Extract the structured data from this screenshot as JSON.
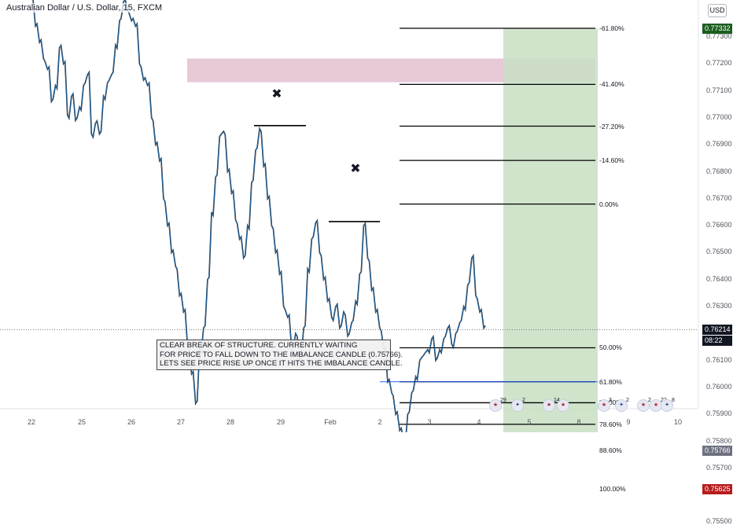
{
  "header": {
    "title": "Australian Dollar / U.S. Dollar, 15, FXCM",
    "currency": "USD"
  },
  "chart_data": {
    "type": "candlestick",
    "symbol": "AUDUSD",
    "timeframe": "15",
    "ylim": [
      0.7545,
      0.7742
    ],
    "y_ticks": [
      "0.77300",
      "0.77200",
      "0.77100",
      "0.77000",
      "0.76900",
      "0.76800",
      "0.76700",
      "0.76600",
      "0.76500",
      "0.76400",
      "0.76300",
      "0.76200",
      "0.76100",
      "0.76000",
      "0.75900",
      "0.75800",
      "0.75700",
      "0.75500"
    ],
    "x_ticks": [
      "22",
      "25",
      "26",
      "27",
      "28",
      "29",
      "Feb",
      "2",
      "3",
      "4",
      "5",
      "8",
      "9",
      "10"
    ],
    "price_path": [
      [
        0.7745,
        0.7734
      ],
      [
        0.7728,
        0.7722
      ],
      [
        0.7718,
        0.7706
      ],
      [
        0.7712,
        0.7726
      ],
      [
        0.772,
        0.7701
      ],
      [
        0.7708,
        0.7699
      ],
      [
        0.7704,
        0.7712
      ],
      [
        0.7716,
        0.7694
      ],
      [
        0.7698,
        0.7694
      ],
      [
        0.7708,
        0.7713
      ],
      [
        0.7716,
        0.7727
      ],
      [
        0.7736,
        0.7743
      ],
      [
        0.774,
        0.7736
      ],
      [
        0.7734,
        0.772
      ],
      [
        0.7714,
        0.7712
      ],
      [
        0.77,
        0.769
      ],
      [
        0.7684,
        0.767
      ],
      [
        0.766,
        0.765
      ],
      [
        0.7645,
        0.7634
      ],
      [
        0.7628,
        0.7615
      ],
      [
        0.7605,
        0.7594
      ],
      [
        0.7614,
        0.7622
      ],
      [
        0.764,
        0.7665
      ],
      [
        0.7678,
        0.7693
      ],
      [
        0.7695,
        0.768
      ],
      [
        0.7672,
        0.7662
      ],
      [
        0.7655,
        0.7648
      ],
      [
        0.766,
        0.7676
      ],
      [
        0.7688,
        0.7696
      ],
      [
        0.7682,
        0.767
      ],
      [
        0.766,
        0.765
      ],
      [
        0.7642,
        0.763
      ],
      [
        0.7626,
        0.7614
      ],
      [
        0.762,
        0.761
      ],
      [
        0.7622,
        0.7644
      ],
      [
        0.7655,
        0.7661
      ],
      [
        0.765,
        0.764
      ],
      [
        0.7632,
        0.7626
      ],
      [
        0.763,
        0.7622
      ],
      [
        0.7628,
        0.7619
      ],
      [
        0.7624,
        0.7632
      ],
      [
        0.7642,
        0.766
      ],
      [
        0.7648,
        0.7636
      ],
      [
        0.7628,
        0.7622
      ],
      [
        0.7614,
        0.7602
      ],
      [
        0.7598,
        0.759
      ],
      [
        0.7584,
        0.758
      ],
      [
        0.759,
        0.7598
      ],
      [
        0.7604,
        0.761
      ],
      [
        0.7612,
        0.7614
      ],
      [
        0.7618,
        0.761
      ],
      [
        0.7614,
        0.7618
      ],
      [
        0.7622,
        0.7616
      ],
      [
        0.762,
        0.7624
      ],
      [
        0.763,
        0.7638
      ],
      [
        0.7648,
        0.7634
      ],
      [
        0.7628,
        0.7622
      ]
    ],
    "structure_highs": [
      {
        "label": "✖",
        "price": 0.76971,
        "from": 28.6,
        "to": 29.3
      },
      {
        "label": "✖",
        "price": 0.76615,
        "from": 30.7,
        "to": 31.3
      }
    ],
    "imbalance_zones": [
      {
        "from": 0.77132,
        "to": 0.7722,
        "color": "#d7a5be"
      },
      {
        "from": 0.75766,
        "to": 0.75808,
        "color": "#e8b8cc"
      }
    ],
    "fib_levels": [
      {
        "label": "-61.80%",
        "price": 0.77332
      },
      {
        "label": "-41.40%",
        "price": 0.77124
      },
      {
        "label": "-27.20%",
        "price": 0.76969
      },
      {
        "label": "-14.60%",
        "price": 0.76842
      },
      {
        "label": "0.00%",
        "price": 0.7668
      },
      {
        "label": "50.00%",
        "price": 0.76147
      },
      {
        "label": "61.80%",
        "price": 0.76021
      },
      {
        "label": "71.00%",
        "price": 0.75943
      },
      {
        "label": "78.60%",
        "price": 0.75863
      },
      {
        "label": "88.60%",
        "price": 0.75766
      },
      {
        "label": "100.00%",
        "price": 0.75625
      }
    ],
    "current_price": {
      "price": "0.76214",
      "countdown": "08:22"
    },
    "position": {
      "entry": "0.75766",
      "stop": "0.75625",
      "target": "0.77332"
    },
    "annotation": [
      "CLEAR BREAK OF STRUCTURE. CURRENTLY WAITING",
      "FOR PRICE TO FALL DOWN TO THE IMBALANCE CANDLE (0.75766).",
      "LETS SEE PRICE RISE UP ONCE IT HITS THE IMBALANCE CANDLE."
    ],
    "events": [
      {
        "icon": "us-flag",
        "count": "29"
      },
      {
        "icon": "au-flag",
        "count": "2"
      },
      {
        "icon": "us-flag",
        "count": "14"
      },
      {
        "icon": "us-flag",
        "count": ""
      },
      {
        "icon": "us-flag",
        "count": "3"
      },
      {
        "icon": "au-flag",
        "count": "2"
      },
      {
        "icon": "us-flag",
        "count": "2"
      },
      {
        "icon": "us-flag",
        "count": "22"
      },
      {
        "icon": "au-flag",
        "count": "8"
      }
    ],
    "colors": {
      "candle": "#1e6fb0",
      "target_zone": "#c8dfc3",
      "stop_zone": "#b3f0f5",
      "level_line": "#000000",
      "target_badge": "#1b5e20",
      "stop_badge": "#b71c1c",
      "entry_badge": "#6e7280"
    }
  }
}
